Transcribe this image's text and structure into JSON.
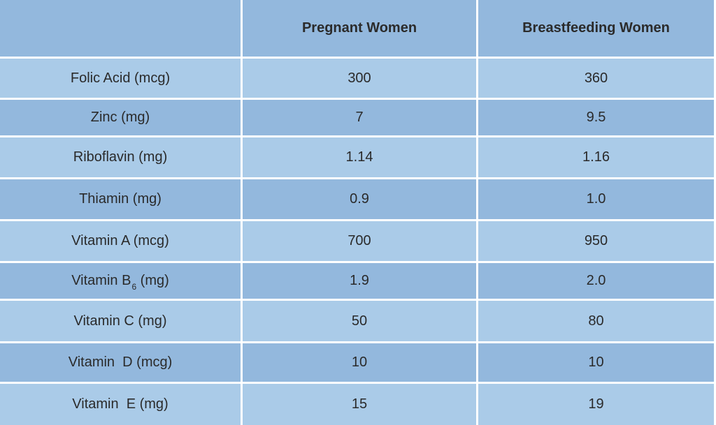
{
  "table": {
    "headers": [
      "",
      "Pregnant Women",
      "Breastfeeding Women"
    ],
    "rows": [
      {
        "nutrient": "Folic Acid (mcg)",
        "pregnant": "300",
        "breastfeeding": "360"
      },
      {
        "nutrient": "Zinc (mg)",
        "pregnant": "7",
        "breastfeeding": "9.5"
      },
      {
        "nutrient": "Riboflavin (mg)",
        "pregnant": "1.14",
        "breastfeeding": "1.16"
      },
      {
        "nutrient": "Thiamin (mg)",
        "pregnant": "0.9",
        "breastfeeding": "1.0"
      },
      {
        "nutrient": "Vitamin A (mcg)",
        "pregnant": "700",
        "breastfeeding": "950"
      },
      {
        "nutrient_pre": "Vitamin B",
        "nutrient_sub": "6",
        "nutrient_post": " (mg)",
        "pregnant": "1.9",
        "breastfeeding": "2.0"
      },
      {
        "nutrient": "Vitamin C (mg)",
        "pregnant": "50",
        "breastfeeding": "80"
      },
      {
        "nutrient": "Vitamin  D (mcg)",
        "pregnant": "10",
        "breastfeeding": "10"
      },
      {
        "nutrient": "Vitamin  E (mg)",
        "pregnant": "15",
        "breastfeeding": "19"
      }
    ]
  },
  "colors": {
    "header_bg": "#93b8dd",
    "row_dark": "#93b8dd",
    "row_light": "#aacbe8",
    "gridline": "#ffffff",
    "text": "#2a2a2a"
  }
}
